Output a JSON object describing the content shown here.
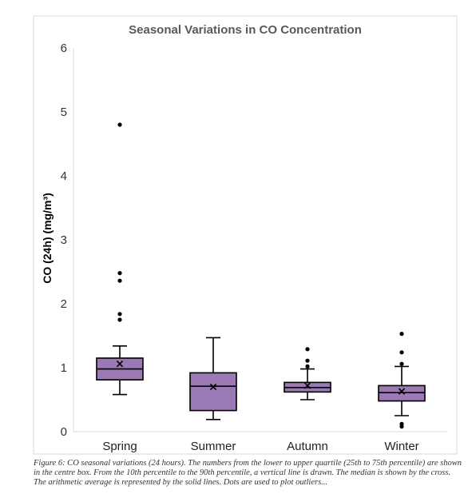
{
  "chart_data": {
    "type": "box",
    "title": "Seasonal Variations in CO Concentration",
    "ylabel": "CO (24h) (mg/m³)",
    "xlabel": "",
    "ylim": [
      0,
      6
    ],
    "yticks": [
      "0",
      "1",
      "2",
      "3",
      "4",
      "5",
      "6"
    ],
    "grid": false,
    "colors": {
      "box_fill": "#9b79b4",
      "stroke": "#000000"
    },
    "categories": [
      "Spring",
      "Summer",
      "Autumn",
      "Winter"
    ],
    "boxes": [
      {
        "category": "Spring",
        "whisker_low": 0.58,
        "q1": 0.81,
        "median": 0.98,
        "q3": 1.15,
        "whisker_high": 1.34,
        "mean": 1.06,
        "outliers": [
          4.8,
          2.48,
          2.36,
          1.84,
          1.75
        ]
      },
      {
        "category": "Summer",
        "whisker_low": 0.19,
        "q1": 0.33,
        "median": 0.71,
        "q3": 0.92,
        "whisker_high": 1.47,
        "mean": 0.7,
        "outliers": []
      },
      {
        "category": "Autumn",
        "whisker_low": 0.5,
        "q1": 0.62,
        "median": 0.69,
        "q3": 0.77,
        "whisker_high": 0.98,
        "mean": 0.72,
        "outliers": [
          1.29,
          1.11,
          1.02
        ]
      },
      {
        "category": "Winter",
        "whisker_low": 0.25,
        "q1": 0.48,
        "median": 0.61,
        "q3": 0.72,
        "whisker_high": 1.02,
        "mean": 0.63,
        "outliers": [
          1.53,
          1.24,
          1.06,
          0.12,
          0.08
        ]
      }
    ]
  },
  "caption": "Figure 6: CO seasonal variations (24 hours). The numbers from the lower to upper quartile (25th to 75th percentile) are shown in the centre box. From the 10th percentile to the 90th percentile, a vertical line is drawn. The median is shown by the cross. The arithmetic average is represented by the solid lines. Dots are used to plot outliers..."
}
